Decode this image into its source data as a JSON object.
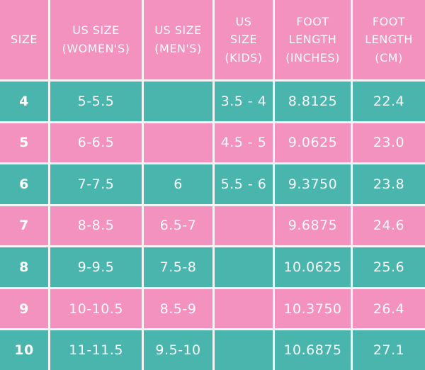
{
  "colors": {
    "pink": "#f392bf",
    "teal": "#49b5ad",
    "grid_line": "#f4f4f4",
    "text": "#ffffff"
  },
  "header_display": [
    "SIZE",
    "US SIZE\n(WOMEN'S)",
    "US SIZE\n(MEN'S)",
    "US\nSIZE\n(KIDS)",
    "FOOT\nLENGTH\n(INCHES)",
    "FOOT\nLENGTH\n(CM)"
  ],
  "column_ids": [
    "size",
    "us-size-womens",
    "us-size-mens",
    "us-size-kids",
    "foot-length-inches",
    "foot-length-cm"
  ],
  "chart_data": {
    "type": "table",
    "columns": [
      "SIZE",
      "US SIZE (WOMEN'S)",
      "US SIZE (MEN'S)",
      "US SIZE (KIDS)",
      "FOOT LENGTH (INCHES)",
      "FOOT LENGTH (CM)"
    ],
    "rows": [
      [
        "4",
        "5-5.5",
        "",
        "3.5 - 4",
        "8.8125",
        "22.4"
      ],
      [
        "5",
        "6-6.5",
        "",
        "4.5 - 5",
        "9.0625",
        "23.0"
      ],
      [
        "6",
        "7-7.5",
        "6",
        "5.5 - 6",
        "9.3750",
        "23.8"
      ],
      [
        "7",
        "8-8.5",
        "6.5-7",
        "",
        "9.6875",
        "24.6"
      ],
      [
        "8",
        "9-9.5",
        "7.5-8",
        "",
        "10.0625",
        "25.6"
      ],
      [
        "9",
        "10-10.5",
        "8.5-9",
        "",
        "10.3750",
        "26.4"
      ],
      [
        "10",
        "11-11.5",
        "9.5-10",
        "",
        "10.6875",
        "27.1"
      ]
    ],
    "layout": {
      "header_background": "#f392bf",
      "row_backgrounds_alternating": [
        "#49b5ad",
        "#f392bf"
      ],
      "grid": true
    }
  }
}
